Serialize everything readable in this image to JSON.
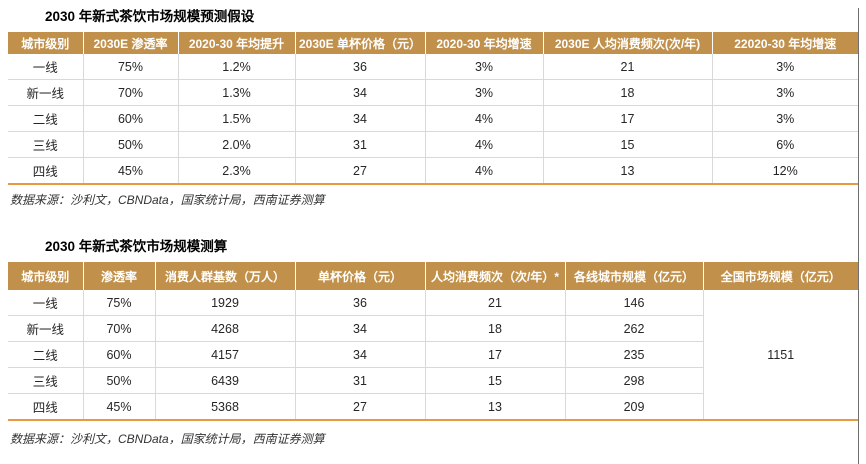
{
  "colors": {
    "header_bg": "#C1914C",
    "header_text": "#FFFFFF",
    "accent_bottom_border": "#E79A3F",
    "row_divider": "#D9D9D9"
  },
  "table1": {
    "title": "2030 年新式茶饮市场规模预测假设",
    "columns": [
      "城市级别",
      "2030E 渗透率",
      "2020-30 年均提升",
      "2030E 单杯价格（元）",
      "2020-30 年均增速",
      "2030E 人均消费频次(次/年)",
      "22020-30 年均增速"
    ],
    "rows": [
      [
        "一线",
        "75%",
        "1.2%",
        "36",
        "3%",
        "21",
        "3%"
      ],
      [
        "新一线",
        "70%",
        "1.3%",
        "34",
        "3%",
        "18",
        "3%"
      ],
      [
        "二线",
        "60%",
        "1.5%",
        "34",
        "4%",
        "17",
        "3%"
      ],
      [
        "三线",
        "50%",
        "2.0%",
        "31",
        "4%",
        "15",
        "6%"
      ],
      [
        "四线",
        "45%",
        "2.3%",
        "27",
        "4%",
        "13",
        "12%"
      ]
    ],
    "source": "数据来源：沙利文，CBNData，国家统计局，西南证券测算"
  },
  "table2": {
    "title": "2030 年新式茶饮市场规模测算",
    "columns": [
      "城市级别",
      "渗透率",
      "消费人群基数（万人）",
      "单杯价格（元）",
      "人均消费频次（次/年）*",
      "各线城市规模（亿元）",
      "全国市场规模（亿元）"
    ],
    "rows": [
      [
        "一线",
        "75%",
        "1929",
        "36",
        "21",
        "146"
      ],
      [
        "新一线",
        "70%",
        "4268",
        "34",
        "18",
        "262"
      ],
      [
        "二线",
        "60%",
        "4157",
        "34",
        "17",
        "235"
      ],
      [
        "三线",
        "50%",
        "6439",
        "31",
        "15",
        "298"
      ],
      [
        "四线",
        "45%",
        "5368",
        "27",
        "13",
        "209"
      ]
    ],
    "national_total": "1151",
    "source": "数据来源：沙利文，CBNData，国家统计局，西南证券测算"
  }
}
